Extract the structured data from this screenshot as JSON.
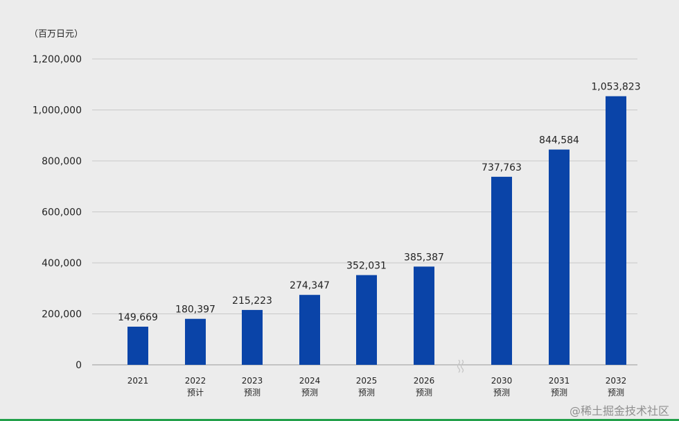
{
  "chart_data": {
    "type": "bar",
    "unit_label": "（百万日元）",
    "categories": [
      "2021",
      "2022",
      "2023",
      "2024",
      "2025",
      "2026",
      "2030",
      "2031",
      "2032"
    ],
    "sub_labels": [
      "",
      "预计",
      "预测",
      "预测",
      "预测",
      "预测",
      "预测",
      "预测",
      "预测"
    ],
    "values": [
      149669,
      180397,
      215223,
      274347,
      352031,
      385387,
      737763,
      844584,
      1053823
    ],
    "value_labels": [
      "149,669",
      "180,397",
      "215,223",
      "274,347",
      "352,031",
      "385,387",
      "737,763",
      "844,584",
      "1,053,823"
    ],
    "y_ticks": [
      0,
      200000,
      400000,
      600000,
      800000,
      1000000,
      1200000
    ],
    "y_tick_labels": [
      "0",
      "200,000",
      "400,000",
      "600,000",
      "800,000",
      "1,000,000",
      "1,200,000"
    ],
    "ylim": [
      0,
      1200000
    ],
    "axis_break_after": "2026",
    "bar_color": "#0a44a8",
    "grid": true
  },
  "watermark": "@稀土掘金技术社区",
  "colors": {
    "background": "#ececec",
    "grid": "#c8c8c8",
    "accent_line": "#22a04a"
  }
}
